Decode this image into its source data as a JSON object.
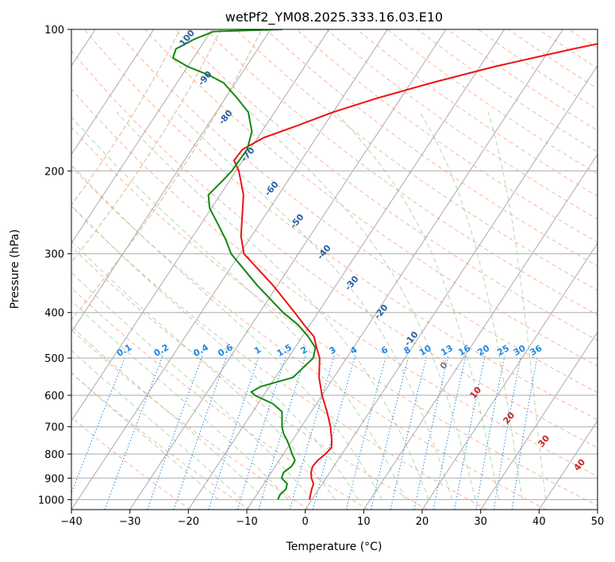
{
  "chart_data": {
    "type": "skew-t",
    "title": "wetPf2_YM08.2025.333.16.03.E10",
    "xlabel": "Temperature (°C)",
    "ylabel": "Pressure (hPa)",
    "xlim": [
      -40,
      50
    ],
    "ylim": [
      1050,
      100
    ],
    "y_scale": "log",
    "x_ticks": [
      -40,
      -30,
      -20,
      -10,
      0,
      10,
      20,
      30,
      40,
      50
    ],
    "x_tick_labels": [
      "−40",
      "−30",
      "−20",
      "−10",
      "0",
      "10",
      "20",
      "30",
      "40",
      "50"
    ],
    "y_ticks": [
      1000,
      900,
      800,
      700,
      600,
      500,
      400,
      300,
      200,
      100
    ],
    "y_tick_labels": [
      "1000",
      "900",
      "800",
      "700",
      "600",
      "500",
      "400",
      "300",
      "200",
      "100"
    ],
    "grid": true,
    "series": [
      {
        "key": "temperature",
        "color": "#ee1111",
        "points": [
          [
            1000,
            -0.4
          ],
          [
            975,
            -0.8
          ],
          [
            950,
            -1.2
          ],
          [
            925,
            -1.5
          ],
          [
            900,
            -2.5
          ],
          [
            875,
            -3.2
          ],
          [
            850,
            -3.6
          ],
          [
            825,
            -3.4
          ],
          [
            800,
            -2.8
          ],
          [
            775,
            -2.5
          ],
          [
            750,
            -3.2
          ],
          [
            700,
            -5.0
          ],
          [
            650,
            -7.3
          ],
          [
            600,
            -10.0
          ],
          [
            550,
            -12.5
          ],
          [
            500,
            -14.6
          ],
          [
            475,
            -16.3
          ],
          [
            450,
            -18.0
          ],
          [
            425,
            -21.0
          ],
          [
            400,
            -24.0
          ],
          [
            350,
            -30.8
          ],
          [
            300,
            -39.3
          ],
          [
            275,
            -41.8
          ],
          [
            250,
            -43.8
          ],
          [
            225,
            -46.0
          ],
          [
            200,
            -49.5
          ],
          [
            190,
            -51.5
          ],
          [
            180,
            -51.3
          ],
          [
            170,
            -49.0
          ],
          [
            160,
            -44.5
          ],
          [
            150,
            -40.0
          ],
          [
            140,
            -34.0
          ],
          [
            130,
            -26.5
          ],
          [
            120,
            -17.5
          ],
          [
            110,
            -6.0
          ],
          [
            100,
            8.0
          ]
        ]
      },
      {
        "key": "dewpoint",
        "color": "#118811",
        "points": [
          [
            1000,
            -5.8
          ],
          [
            975,
            -6.0
          ],
          [
            950,
            -5.6
          ],
          [
            925,
            -6.0
          ],
          [
            900,
            -7.6
          ],
          [
            875,
            -7.9
          ],
          [
            850,
            -7.2
          ],
          [
            825,
            -7.3
          ],
          [
            800,
            -8.5
          ],
          [
            775,
            -9.6
          ],
          [
            750,
            -10.8
          ],
          [
            725,
            -12.2
          ],
          [
            700,
            -13.3
          ],
          [
            650,
            -15.0
          ],
          [
            625,
            -17.5
          ],
          [
            600,
            -21.5
          ],
          [
            590,
            -22.5
          ],
          [
            575,
            -21.5
          ],
          [
            550,
            -17.0
          ],
          [
            500,
            -15.7
          ],
          [
            475,
            -16.5
          ],
          [
            450,
            -19.0
          ],
          [
            425,
            -22.0
          ],
          [
            400,
            -26.0
          ],
          [
            350,
            -33.5
          ],
          [
            300,
            -41.5
          ],
          [
            280,
            -44.0
          ],
          [
            260,
            -47.0
          ],
          [
            240,
            -50.3
          ],
          [
            225,
            -52.0
          ],
          [
            210,
            -51.2
          ],
          [
            200,
            -50.7
          ],
          [
            180,
            -50.5
          ],
          [
            165,
            -51.7
          ],
          [
            150,
            -54.5
          ],
          [
            140,
            -58.0
          ],
          [
            130,
            -62.0
          ],
          [
            125,
            -65.5
          ],
          [
            120,
            -70.0
          ],
          [
            115,
            -73.5
          ],
          [
            110,
            -74.0
          ],
          [
            105,
            -72.0
          ],
          [
            101,
            -69.5
          ],
          [
            100,
            -58.0
          ]
        ]
      }
    ],
    "mixing_ratio_labels": [
      "0.1",
      "0.2",
      "0.4",
      "0.6",
      "1",
      "1.5",
      "2",
      "3",
      "4",
      "6",
      "8",
      "10",
      "13",
      "16",
      "20",
      "25",
      "30",
      "36"
    ],
    "dry_adiabat_labels": [
      "-100",
      "-90",
      "-80",
      "-70",
      "-60",
      "-50",
      "-40",
      "-30",
      "-20",
      "-10",
      "0",
      "10",
      "20",
      "30",
      "40"
    ],
    "colors": {
      "dry_adiabat": "#fa9a7a",
      "moist_adiabat": "#7fbf7f",
      "mixing_ratio": "#1e88e5",
      "isotherm_skew": "#999999",
      "isobar": "#aaaaaa",
      "label_dark_blue": "#2a5fa0",
      "label_red": "#cc2222",
      "label_grey": "#777777",
      "curve_tan": "#d9b48a"
    }
  }
}
